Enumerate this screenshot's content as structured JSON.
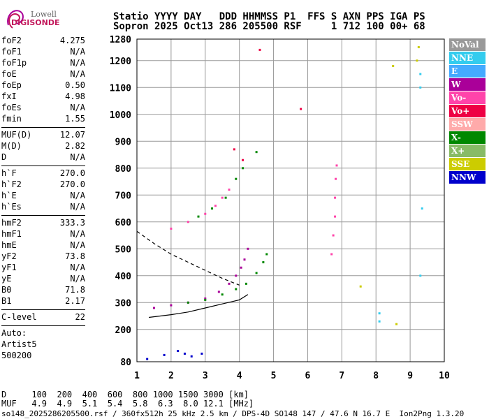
{
  "logo": {
    "line1": "Lowell",
    "line2": "DIGISONDE"
  },
  "header": {
    "line1": "Statio YYYY DAY   DDD HHMMSS P1  FFS S AXN PPS IGA PS",
    "line2": "Sopron 2025 Oct13 286 205500 RSF     1 712 100 00+ 68"
  },
  "params": [
    [
      [
        "foF2",
        "4.275"
      ],
      [
        "foF1",
        "N/A"
      ],
      [
        "foF1p",
        "N/A"
      ],
      [
        "foE",
        "N/A"
      ],
      [
        "foEp",
        "0.50"
      ],
      [
        "fxI",
        "4.98"
      ],
      [
        "foEs",
        "N/A"
      ],
      [
        "fmin",
        "1.55"
      ]
    ],
    [
      [
        "MUF(D)",
        "12.07"
      ],
      [
        "M(D)",
        "2.82"
      ],
      [
        "D",
        "N/A"
      ]
    ],
    [
      [
        "h`F",
        "270.0"
      ],
      [
        "h`F2",
        "270.0"
      ],
      [
        "h`E",
        "N/A"
      ],
      [
        "h`Es",
        "N/A"
      ]
    ],
    [
      [
        "hmF2",
        "333.3"
      ],
      [
        "hmF1",
        "N/A"
      ],
      [
        "hmE",
        "N/A"
      ],
      [
        "yF2",
        "73.8"
      ],
      [
        "yF1",
        "N/A"
      ],
      [
        "yE",
        "N/A"
      ],
      [
        "B0",
        "71.8"
      ],
      [
        "B1",
        "2.17"
      ]
    ],
    [
      [
        "C-level",
        "22"
      ]
    ]
  ],
  "auto": {
    "label": "Auto:",
    "name": "Artist5",
    "code": "500200"
  },
  "legend": [
    {
      "label": "NoVal",
      "color": "#999999"
    },
    {
      "label": "NNE",
      "color": "#33ccee"
    },
    {
      "label": "E",
      "color": "#44aaff"
    },
    {
      "label": "W",
      "color": "#aa0099"
    },
    {
      "label": "Vo-",
      "color": "#ff44aa"
    },
    {
      "label": "Vo+",
      "color": "#ee0044"
    },
    {
      "label": "SSW",
      "color": "#ffaaaa"
    },
    {
      "label": "X-",
      "color": "#008800"
    },
    {
      "label": "X+",
      "color": "#88bb66"
    },
    {
      "label": "SSE",
      "color": "#cccc00"
    },
    {
      "label": "NNW",
      "color": "#0000cc"
    }
  ],
  "dmuf": {
    "line1": "D     100  200  400  600  800 1000 1500 3000 [km]",
    "line2": "MUF   4.9  4.9  5.1  5.4  5.8  6.3  8.0 12.1 [MHz]"
  },
  "footer": "so148_2025286205500.rsf / 360fx512h 25 kHz 2.5 km / DPS-4D SO148 147 / 47.6 N 16.7 E  Ion2Png 1.3.20",
  "chart_data": {
    "type": "scatter",
    "x_ticks": [
      "1",
      "2",
      "3",
      "4",
      "5",
      "6",
      "7",
      "8",
      "9",
      "10"
    ],
    "y_ticks": [
      "80",
      "200",
      "300",
      "400",
      "500",
      "600",
      "700",
      "800",
      "900",
      "1000",
      "1100",
      "1200",
      "1280"
    ],
    "xlim": [
      1,
      10
    ],
    "ylim": [
      80,
      1280
    ],
    "grid": true,
    "series": [
      {
        "color": "#aa0099",
        "points": [
          [
            1.5,
            280
          ],
          [
            2.0,
            290
          ],
          [
            2.5,
            300
          ],
          [
            3.0,
            315
          ],
          [
            3.4,
            340
          ],
          [
            3.7,
            370
          ],
          [
            3.9,
            400
          ],
          [
            4.05,
            430
          ],
          [
            4.15,
            460
          ],
          [
            4.25,
            500
          ]
        ]
      },
      {
        "color": "#008800",
        "points": [
          [
            2.5,
            300
          ],
          [
            3.0,
            310
          ],
          [
            3.5,
            330
          ],
          [
            3.9,
            350
          ],
          [
            4.2,
            370
          ],
          [
            4.5,
            410
          ],
          [
            4.7,
            450
          ],
          [
            4.8,
            480
          ]
        ]
      },
      {
        "color": "#ff44aa",
        "points": [
          [
            2.0,
            575
          ],
          [
            2.5,
            600
          ],
          [
            3.0,
            630
          ],
          [
            3.3,
            660
          ],
          [
            3.5,
            690
          ],
          [
            3.7,
            720
          ]
        ]
      },
      {
        "color": "#008800",
        "points": [
          [
            2.8,
            620
          ],
          [
            3.2,
            650
          ],
          [
            3.6,
            690
          ],
          [
            3.9,
            760
          ],
          [
            4.1,
            800
          ],
          [
            4.5,
            860
          ]
        ]
      },
      {
        "color": "#ff44aa",
        "points": [
          [
            6.7,
            480
          ],
          [
            6.75,
            550
          ],
          [
            6.8,
            620
          ],
          [
            6.8,
            690
          ],
          [
            6.82,
            760
          ],
          [
            6.85,
            810
          ]
        ]
      },
      {
        "color": "#0000cc",
        "points": [
          [
            2.2,
            120
          ],
          [
            2.4,
            110
          ],
          [
            2.6,
            100
          ],
          [
            1.8,
            105
          ],
          [
            2.9,
            110
          ],
          [
            1.3,
            90
          ]
        ]
      },
      {
        "color": "#33ccee",
        "points": [
          [
            9.3,
            1150
          ],
          [
            9.3,
            1100
          ],
          [
            9.35,
            650
          ],
          [
            9.3,
            400
          ],
          [
            8.1,
            260
          ],
          [
            8.1,
            230
          ]
        ]
      },
      {
        "color": "#cccc00",
        "points": [
          [
            9.25,
            1250
          ],
          [
            9.2,
            1200
          ],
          [
            8.5,
            1180
          ],
          [
            7.55,
            360
          ],
          [
            8.6,
            220
          ]
        ]
      },
      {
        "color": "#ee0044",
        "points": [
          [
            5.8,
            1020
          ],
          [
            3.85,
            870
          ],
          [
            4.1,
            830
          ],
          [
            4.6,
            1240
          ]
        ]
      }
    ],
    "curves": [
      {
        "style": "dashed",
        "points": [
          [
            1.0,
            565
          ],
          [
            1.5,
            520
          ],
          [
            2.0,
            480
          ],
          [
            2.5,
            450
          ],
          [
            3.0,
            420
          ],
          [
            3.5,
            390
          ],
          [
            4.0,
            365
          ]
        ]
      },
      {
        "style": "solid",
        "points": [
          [
            1.35,
            245
          ],
          [
            2.0,
            255
          ],
          [
            2.5,
            265
          ],
          [
            3.0,
            280
          ],
          [
            3.5,
            295
          ],
          [
            4.0,
            310
          ],
          [
            4.25,
            330
          ]
        ]
      }
    ]
  }
}
